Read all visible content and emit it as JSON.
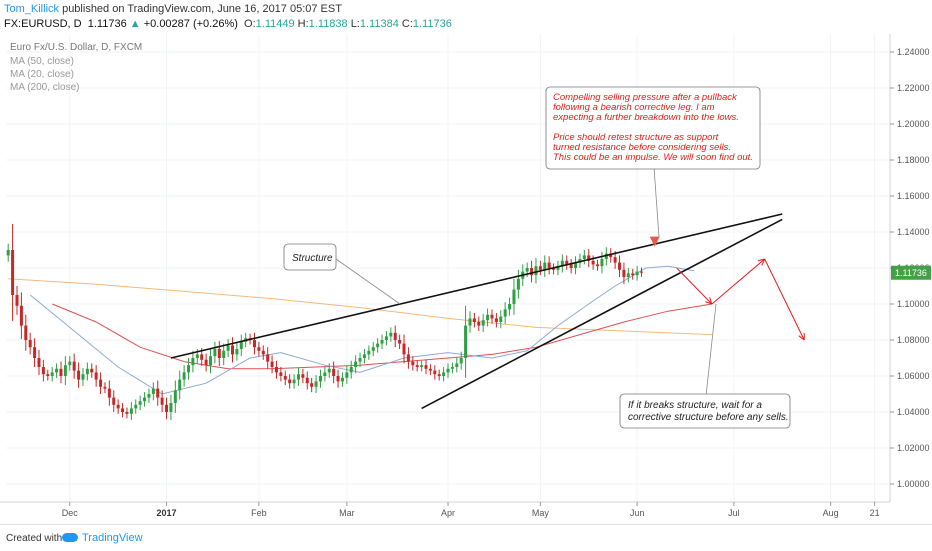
{
  "header": {
    "author": "Tom_Killick",
    "published": " published on TradingView.com, June 16, 2017 05:07 EST",
    "symbol": "FX:EURUSD, D",
    "price": "1.11736",
    "change_arrow": "▲",
    "change": "+0.00287 (+0.26%)",
    "o_label": "O:",
    "o_value": "1.11449",
    "h_label": "H:",
    "h_value": "1.11838",
    "l_label": "L:",
    "l_value": "1.11384",
    "c_label": "C:",
    "c_value": "1.11736"
  },
  "legend": {
    "title": "Euro Fx/U.S. Dollar, D, FXCM",
    "ma1": "MA (50, close)",
    "ma2": "MA (20, close)",
    "ma3": "MA (200, close)"
  },
  "annotations": {
    "structure": "Structure",
    "top_note": [
      "Compelling selling pressure after a pullback",
      "following a bearish corrective leg. I am",
      "expecting a further breakdown into the lows.",
      "",
      "Price should retest structure as support",
      "turned resistance before considering sells.",
      "This could be an impulse. We will soon find out."
    ],
    "bottom_note": [
      "If it breaks structure, wait for a",
      "corrective structure before any sells."
    ]
  },
  "colors": {
    "up": "#2ea043",
    "down": "#c62828",
    "ma20": "#8fa8d8",
    "ma50": "#e05050",
    "ma200": "#f5b878",
    "annotation_red": "#e0201e",
    "price_tag": "#43a047"
  },
  "chart_data": {
    "type": "candlestick",
    "symbol": "EURUSD",
    "timeframe": "D",
    "ylim": [
      0.99,
      1.25
    ],
    "yticks": [
      "1.24000",
      "1.22000",
      "1.20000",
      "1.18000",
      "1.16000",
      "1.14000",
      "1.12000",
      "1.10000",
      "1.08000",
      "1.06000",
      "1.04000",
      "1.02000",
      "1.00000"
    ],
    "ytick_values": [
      1.24,
      1.22,
      1.2,
      1.18,
      1.16,
      1.14,
      1.12,
      1.1,
      1.08,
      1.06,
      1.04,
      1.02,
      1.0
    ],
    "xticks": [
      "Dec",
      "2017",
      "Feb",
      "Mar",
      "Apr",
      "May",
      "Jun",
      "Jul",
      "Aug",
      "21"
    ],
    "xtick_bold": [
      false,
      true,
      false,
      false,
      false,
      false,
      false,
      false,
      false,
      false
    ],
    "xtick_index": [
      14,
      36,
      57,
      77,
      100,
      121,
      143,
      165,
      187,
      197
    ],
    "n_periods": 201,
    "last_price": "1.11736",
    "closes": [
      1.13,
      1.105,
      1.099,
      1.088,
      1.08,
      1.076,
      1.07,
      1.065,
      1.061,
      1.06,
      1.062,
      1.064,
      1.06,
      1.066,
      1.068,
      1.063,
      1.058,
      1.061,
      1.064,
      1.062,
      1.058,
      1.054,
      1.053,
      1.048,
      1.044,
      1.042,
      1.04,
      1.039,
      1.042,
      1.044,
      1.046,
      1.048,
      1.05,
      1.053,
      1.048,
      1.044,
      1.04,
      1.045,
      1.052,
      1.058,
      1.062,
      1.066,
      1.07,
      1.072,
      1.069,
      1.066,
      1.071,
      1.075,
      1.07,
      1.074,
      1.077,
      1.072,
      1.075,
      1.079,
      1.081,
      1.08,
      1.076,
      1.074,
      1.072,
      1.068,
      1.065,
      1.062,
      1.06,
      1.058,
      1.056,
      1.058,
      1.061,
      1.059,
      1.056,
      1.054,
      1.057,
      1.06,
      1.062,
      1.064,
      1.06,
      1.057,
      1.059,
      1.062,
      1.065,
      1.068,
      1.07,
      1.072,
      1.074,
      1.076,
      1.078,
      1.08,
      1.082,
      1.084,
      1.08,
      1.078,
      1.072,
      1.068,
      1.066,
      1.065,
      1.066,
      1.064,
      1.063,
      1.061,
      1.06,
      1.062,
      1.064,
      1.065,
      1.067,
      1.07,
      1.088,
      1.092,
      1.09,
      1.088,
      1.091,
      1.094,
      1.092,
      1.09,
      1.093,
      1.097,
      1.1,
      1.108,
      1.114,
      1.118,
      1.12,
      1.116,
      1.121,
      1.119,
      1.123,
      1.12,
      1.119,
      1.121,
      1.124,
      1.122,
      1.12,
      1.123,
      1.125,
      1.127,
      1.124,
      1.122,
      1.121,
      1.125,
      1.128,
      1.126,
      1.123,
      1.119,
      1.115,
      1.117,
      1.116,
      1.118,
      1.1174
    ],
    "ma20": [
      [
        5,
        1.105
      ],
      [
        15,
        1.085
      ],
      [
        25,
        1.065
      ],
      [
        35,
        1.05
      ],
      [
        45,
        1.056
      ],
      [
        55,
        1.07
      ],
      [
        62,
        1.073
      ],
      [
        72,
        1.066
      ],
      [
        80,
        1.062
      ],
      [
        90,
        1.07
      ],
      [
        100,
        1.073
      ],
      [
        110,
        1.07
      ],
      [
        118,
        1.074
      ],
      [
        125,
        1.088
      ],
      [
        132,
        1.1
      ],
      [
        138,
        1.11
      ],
      [
        145,
        1.12
      ],
      [
        150,
        1.121
      ],
      [
        156,
        1.1185
      ]
    ],
    "ma50": [
      [
        10,
        1.1
      ],
      [
        20,
        1.09
      ],
      [
        30,
        1.076
      ],
      [
        40,
        1.068
      ],
      [
        50,
        1.064
      ],
      [
        60,
        1.064
      ],
      [
        70,
        1.065
      ],
      [
        80,
        1.066
      ],
      [
        90,
        1.068
      ],
      [
        100,
        1.07
      ],
      [
        110,
        1.072
      ],
      [
        120,
        1.076
      ],
      [
        130,
        1.083
      ],
      [
        140,
        1.09
      ],
      [
        150,
        1.096
      ],
      [
        160,
        1.1
      ]
    ],
    "ma200": [
      [
        0,
        1.114
      ],
      [
        20,
        1.111
      ],
      [
        40,
        1.107
      ],
      [
        60,
        1.103
      ],
      [
        80,
        1.098
      ],
      [
        100,
        1.092
      ],
      [
        120,
        1.087
      ],
      [
        140,
        1.085
      ],
      [
        160,
        1.083
      ]
    ],
    "trendlines": [
      {
        "name": "upper-structure",
        "p1": [
          37,
          1.07
        ],
        "p2": [
          176,
          1.15
        ]
      },
      {
        "name": "lower-structure",
        "p1": [
          94,
          1.042
        ],
        "p2": [
          176,
          1.147
        ]
      }
    ],
    "projection": [
      [
        152,
        1.12
      ],
      [
        160,
        1.1
      ],
      [
        172,
        1.125
      ],
      [
        181,
        1.08
      ]
    ]
  }
}
